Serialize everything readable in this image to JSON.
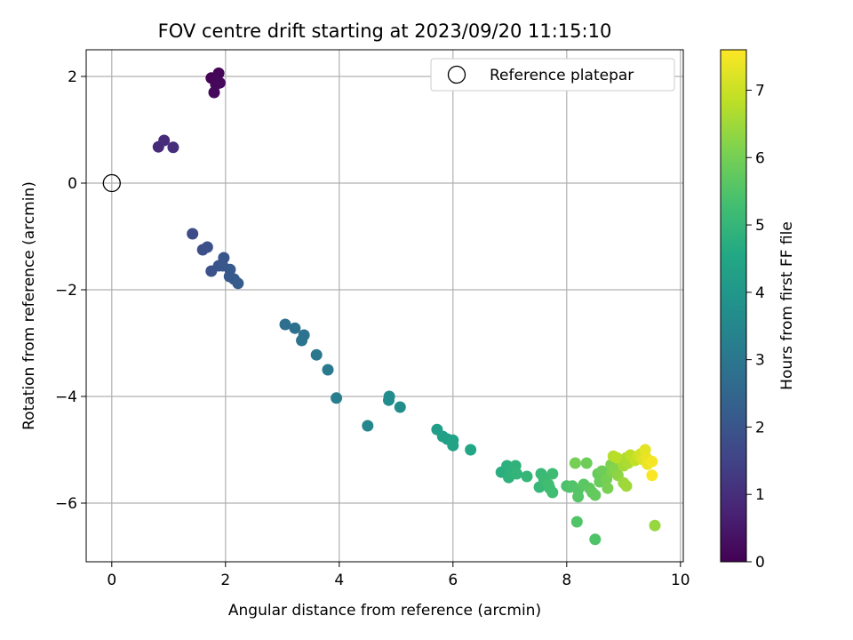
{
  "chart_data": {
    "type": "scatter",
    "title": "FOV centre drift starting at 2023/09/20 11:15:10",
    "xlabel": "Angular distance from reference (arcmin)",
    "ylabel": "Rotation from reference (arcmin)",
    "xlim": [
      -0.45,
      10.05
    ],
    "ylim": [
      -7.1,
      2.5
    ],
    "xticks": [
      0,
      2,
      4,
      6,
      8,
      10
    ],
    "yticks": [
      2,
      0,
      -2,
      -4,
      -6
    ],
    "xtick_labels": [
      "0",
      "2",
      "4",
      "6",
      "8",
      "10"
    ],
    "ytick_labels": [
      "2",
      "0",
      "−2",
      "−4",
      "−6"
    ],
    "grid": true,
    "legend": {
      "position": "top-right",
      "label": "Reference platepar"
    },
    "reference_point": {
      "x": 0,
      "y": 0
    },
    "colorbar": {
      "label": "Hours from first FF file",
      "range": [
        0,
        7.6
      ],
      "ticks": [
        0,
        1,
        2,
        3,
        4,
        5,
        6,
        7
      ],
      "tick_labels": [
        "0",
        "1",
        "2",
        "3",
        "4",
        "5",
        "6",
        "7"
      ],
      "colormap": "viridis"
    },
    "points": [
      {
        "x": 1.75,
        "y": 1.97,
        "h": 0.05
      },
      {
        "x": 1.8,
        "y": 1.95,
        "h": 0.08
      },
      {
        "x": 1.88,
        "y": 2.06,
        "h": 0.1
      },
      {
        "x": 1.85,
        "y": 1.92,
        "h": 0.12
      },
      {
        "x": 1.83,
        "y": 1.85,
        "h": 0.14
      },
      {
        "x": 1.9,
        "y": 1.88,
        "h": 0.16
      },
      {
        "x": 1.8,
        "y": 1.7,
        "h": 0.18
      },
      {
        "x": 0.82,
        "y": 0.68,
        "h": 0.9
      },
      {
        "x": 0.92,
        "y": 0.8,
        "h": 0.95
      },
      {
        "x": 1.08,
        "y": 0.67,
        "h": 1.0
      },
      {
        "x": 1.42,
        "y": -0.95,
        "h": 1.75
      },
      {
        "x": 1.6,
        "y": -1.25,
        "h": 1.8
      },
      {
        "x": 1.68,
        "y": -1.2,
        "h": 1.85
      },
      {
        "x": 1.75,
        "y": -1.65,
        "h": 1.9
      },
      {
        "x": 1.88,
        "y": -1.55,
        "h": 1.95
      },
      {
        "x": 1.97,
        "y": -1.4,
        "h": 2.0
      },
      {
        "x": 1.95,
        "y": -1.55,
        "h": 2.05
      },
      {
        "x": 2.08,
        "y": -1.62,
        "h": 2.1
      },
      {
        "x": 2.07,
        "y": -1.75,
        "h": 2.12
      },
      {
        "x": 2.15,
        "y": -1.8,
        "h": 2.15
      },
      {
        "x": 2.22,
        "y": -1.88,
        "h": 2.2
      },
      {
        "x": 3.05,
        "y": -2.65,
        "h": 2.75
      },
      {
        "x": 3.22,
        "y": -2.72,
        "h": 2.8
      },
      {
        "x": 3.38,
        "y": -2.85,
        "h": 2.85
      },
      {
        "x": 3.34,
        "y": -2.95,
        "h": 2.88
      },
      {
        "x": 3.6,
        "y": -3.22,
        "h": 3.0
      },
      {
        "x": 3.8,
        "y": -3.5,
        "h": 3.1
      },
      {
        "x": 3.95,
        "y": -4.03,
        "h": 3.2
      },
      {
        "x": 4.5,
        "y": -4.55,
        "h": 3.5
      },
      {
        "x": 4.88,
        "y": -4.0,
        "h": 3.65
      },
      {
        "x": 4.87,
        "y": -4.07,
        "h": 3.68
      },
      {
        "x": 5.07,
        "y": -4.2,
        "h": 3.72
      },
      {
        "x": 5.72,
        "y": -4.62,
        "h": 4.2
      },
      {
        "x": 5.82,
        "y": -4.75,
        "h": 4.25
      },
      {
        "x": 5.9,
        "y": -4.8,
        "h": 4.3
      },
      {
        "x": 6.0,
        "y": -4.82,
        "h": 4.35
      },
      {
        "x": 6.0,
        "y": -4.92,
        "h": 4.4
      },
      {
        "x": 6.31,
        "y": -5.0,
        "h": 4.5
      },
      {
        "x": 6.85,
        "y": -5.42,
        "h": 4.75
      },
      {
        "x": 6.95,
        "y": -5.3,
        "h": 4.8
      },
      {
        "x": 7.0,
        "y": -5.48,
        "h": 4.82
      },
      {
        "x": 7.05,
        "y": -5.4,
        "h": 4.85
      },
      {
        "x": 6.98,
        "y": -5.52,
        "h": 4.87
      },
      {
        "x": 7.1,
        "y": -5.3,
        "h": 4.9
      },
      {
        "x": 7.12,
        "y": -5.45,
        "h": 4.95
      },
      {
        "x": 7.3,
        "y": -5.5,
        "h": 5.0
      },
      {
        "x": 7.52,
        "y": -5.7,
        "h": 5.05
      },
      {
        "x": 7.55,
        "y": -5.45,
        "h": 5.1
      },
      {
        "x": 7.6,
        "y": -5.55,
        "h": 5.12
      },
      {
        "x": 7.62,
        "y": -5.6,
        "h": 5.15
      },
      {
        "x": 7.7,
        "y": -5.72,
        "h": 5.18
      },
      {
        "x": 7.75,
        "y": -5.45,
        "h": 5.2
      },
      {
        "x": 7.75,
        "y": -5.8,
        "h": 5.22
      },
      {
        "x": 7.68,
        "y": -5.65,
        "h": 5.25
      },
      {
        "x": 8.0,
        "y": -5.68,
        "h": 5.4
      },
      {
        "x": 8.05,
        "y": -5.7,
        "h": 5.45
      },
      {
        "x": 8.1,
        "y": -5.68,
        "h": 5.5
      },
      {
        "x": 8.2,
        "y": -5.75,
        "h": 5.55
      },
      {
        "x": 8.2,
        "y": -5.88,
        "h": 5.58
      },
      {
        "x": 8.18,
        "y": -6.35,
        "h": 5.52
      },
      {
        "x": 8.5,
        "y": -6.68,
        "h": 5.48
      },
      {
        "x": 8.15,
        "y": -5.25,
        "h": 6.0
      },
      {
        "x": 8.35,
        "y": -5.25,
        "h": 5.9
      },
      {
        "x": 8.3,
        "y": -5.65,
        "h": 5.65
      },
      {
        "x": 8.4,
        "y": -5.72,
        "h": 5.7
      },
      {
        "x": 8.45,
        "y": -5.8,
        "h": 5.75
      },
      {
        "x": 8.5,
        "y": -5.85,
        "h": 5.78
      },
      {
        "x": 8.55,
        "y": -5.45,
        "h": 5.8
      },
      {
        "x": 8.58,
        "y": -5.6,
        "h": 5.85
      },
      {
        "x": 8.62,
        "y": -5.4,
        "h": 5.9
      },
      {
        "x": 8.7,
        "y": -5.55,
        "h": 6.0
      },
      {
        "x": 8.72,
        "y": -5.72,
        "h": 6.05
      },
      {
        "x": 8.78,
        "y": -5.28,
        "h": 6.1
      },
      {
        "x": 8.8,
        "y": -5.42,
        "h": 6.15
      },
      {
        "x": 8.85,
        "y": -5.35,
        "h": 6.2
      },
      {
        "x": 8.9,
        "y": -5.48,
        "h": 6.3
      },
      {
        "x": 8.95,
        "y": -5.2,
        "h": 6.4
      },
      {
        "x": 9.0,
        "y": -5.62,
        "h": 6.45
      },
      {
        "x": 9.05,
        "y": -5.68,
        "h": 6.5
      },
      {
        "x": 9.0,
        "y": -5.3,
        "h": 6.55
      },
      {
        "x": 9.05,
        "y": -5.15,
        "h": 6.6
      },
      {
        "x": 9.08,
        "y": -5.25,
        "h": 6.65
      },
      {
        "x": 8.82,
        "y": -5.12,
        "h": 6.75
      },
      {
        "x": 8.88,
        "y": -5.15,
        "h": 6.8
      },
      {
        "x": 9.12,
        "y": -5.1,
        "h": 6.85
      },
      {
        "x": 9.2,
        "y": -5.2,
        "h": 6.9
      },
      {
        "x": 9.25,
        "y": -5.12,
        "h": 7.0
      },
      {
        "x": 9.3,
        "y": -5.08,
        "h": 7.1
      },
      {
        "x": 9.33,
        "y": -5.18,
        "h": 7.2
      },
      {
        "x": 9.38,
        "y": -5.0,
        "h": 7.3
      },
      {
        "x": 9.4,
        "y": -5.15,
        "h": 7.35
      },
      {
        "x": 9.42,
        "y": -5.27,
        "h": 7.4
      },
      {
        "x": 9.5,
        "y": -5.22,
        "h": 7.5
      },
      {
        "x": 9.5,
        "y": -5.48,
        "h": 7.55
      },
      {
        "x": 9.55,
        "y": -6.42,
        "h": 6.4
      }
    ]
  }
}
